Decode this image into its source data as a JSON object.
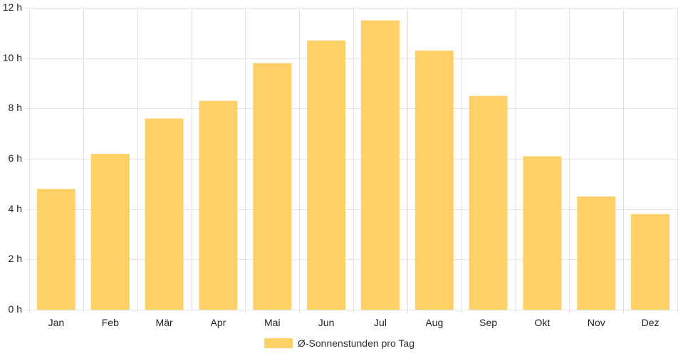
{
  "chart_data": {
    "type": "bar",
    "categories": [
      "Jan",
      "Feb",
      "Mär",
      "Apr",
      "Mai",
      "Jun",
      "Jul",
      "Aug",
      "Sep",
      "Okt",
      "Nov",
      "Dez"
    ],
    "series": [
      {
        "name": "Ø-Sonnenstunden pro Tag",
        "values": [
          4.8,
          6.2,
          7.6,
          8.3,
          9.8,
          10.7,
          11.5,
          10.3,
          8.5,
          6.1,
          4.5,
          3.8
        ],
        "color": "#fdd068"
      }
    ],
    "ylim": [
      0,
      12
    ],
    "yticks": [
      0,
      2,
      4,
      6,
      8,
      10,
      12
    ],
    "ytick_labels": [
      "0 h",
      "2 h",
      "4 h",
      "6 h",
      "8 h",
      "10 h",
      "12 h"
    ],
    "grid": true,
    "legend_position": "bottom-center",
    "grid_color": "#e3e3e3"
  }
}
